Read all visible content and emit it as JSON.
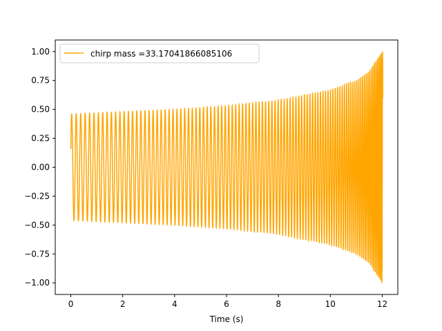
{
  "chart_data": {
    "type": "line",
    "title": "",
    "xlabel": "Time (s)",
    "ylabel": "",
    "xlim": [
      -0.6,
      12.6
    ],
    "ylim": [
      -1.1,
      1.1
    ],
    "x_ticks": [
      0,
      2,
      4,
      6,
      8,
      10,
      12
    ],
    "x_tick_labels": [
      "0",
      "2",
      "4",
      "6",
      "8",
      "10",
      "12"
    ],
    "y_ticks": [
      -1.0,
      -0.75,
      -0.5,
      -0.25,
      0.0,
      0.25,
      0.5,
      0.75,
      1.0
    ],
    "y_tick_labels": [
      "−1.00",
      "−0.75",
      "−0.50",
      "−0.25",
      "0.00",
      "0.25",
      "0.50",
      "0.75",
      "1.00"
    ],
    "grid": false,
    "legend_position": "top-left",
    "series": [
      {
        "name": "chirp mass =33.17041866085106",
        "color": "#FFA500",
        "t_start": 0.0,
        "t_end": 12.02,
        "start_amplitude": 0.46,
        "end_amplitude": 1.0,
        "start_frequency_hz": 5.8,
        "approx_cycles": 110,
        "envelope_samples": [
          {
            "t": 0,
            "amp": 0.46
          },
          {
            "t": 2,
            "amp": 0.48
          },
          {
            "t": 4,
            "amp": 0.5
          },
          {
            "t": 6,
            "amp": 0.53
          },
          {
            "t": 8,
            "amp": 0.58
          },
          {
            "t": 10,
            "amp": 0.67
          },
          {
            "t": 11,
            "amp": 0.75
          },
          {
            "t": 11.5,
            "amp": 0.83
          },
          {
            "t": 12,
            "amp": 1.0
          }
        ]
      }
    ]
  }
}
